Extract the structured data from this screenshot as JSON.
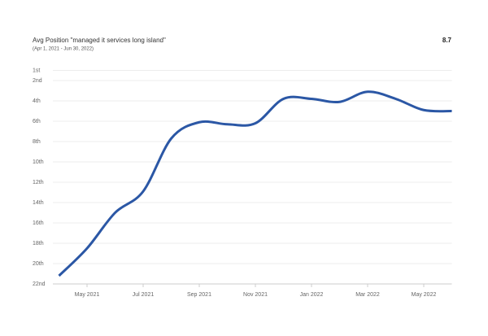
{
  "chart_data": {
    "type": "line",
    "title": "Avg Position \"managed it services long island\"",
    "subtitle": "(Apr 1, 2021 - Jun 30, 2022)",
    "summary": "8.7",
    "x": [
      "2021-04",
      "2021-05",
      "2021-06",
      "2021-07",
      "2021-08",
      "2021-09",
      "2021-10",
      "2021-11",
      "2021-12",
      "2022-01",
      "2022-02",
      "2022-03",
      "2022-04",
      "2022-05",
      "2022-06"
    ],
    "xlim": [
      "2021-04",
      "2022-06"
    ],
    "xticks": [
      {
        "value": "2021-05",
        "label": "May 2021"
      },
      {
        "value": "2021-07",
        "label": "Jul 2021"
      },
      {
        "value": "2021-09",
        "label": "Sep 2021"
      },
      {
        "value": "2021-11",
        "label": "Nov 2021"
      },
      {
        "value": "2022-01",
        "label": "Jan 2022"
      },
      {
        "value": "2022-03",
        "label": "Mar 2022"
      },
      {
        "value": "2022-05",
        "label": "May 2022"
      }
    ],
    "ylim": [
      1,
      22
    ],
    "y_inverted": true,
    "yticks": [
      {
        "value": 1,
        "label": "1st"
      },
      {
        "value": 2,
        "label": "2nd"
      },
      {
        "value": 4,
        "label": "4th"
      },
      {
        "value": 6,
        "label": "6th"
      },
      {
        "value": 8,
        "label": "8th"
      },
      {
        "value": 10,
        "label": "10th"
      },
      {
        "value": 12,
        "label": "12th"
      },
      {
        "value": 14,
        "label": "14th"
      },
      {
        "value": 16,
        "label": "16th"
      },
      {
        "value": 18,
        "label": "18th"
      },
      {
        "value": 20,
        "label": "20th"
      },
      {
        "value": 22,
        "label": "22nd"
      }
    ],
    "grid": true,
    "series": [
      {
        "name": "Avg Position",
        "color": "#2b57a5",
        "values": [
          21.2,
          18.5,
          15.0,
          12.9,
          7.7,
          6.1,
          6.3,
          6.2,
          3.8,
          3.8,
          4.1,
          3.1,
          3.8,
          4.9,
          5.0
        ]
      }
    ]
  }
}
